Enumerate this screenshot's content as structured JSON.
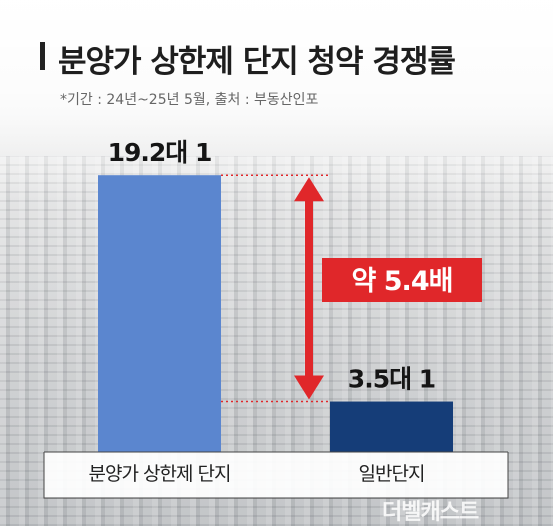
{
  "header": {
    "title": "분양가 상한제 단지 청약 경쟁률",
    "note": "*기간 : 24년~25년 5월, 출처 : 부동산인포"
  },
  "colors": {
    "bar_primary": "#5b86cf",
    "bar_secondary": "#153d78",
    "accent_red": "#e0272a",
    "dotted_red": "#e0272a"
  },
  "annotation": {
    "text": "약 5.4배"
  },
  "watermark": "더벨캐스트",
  "chart_data": {
    "type": "bar",
    "categories": [
      "분양가 상한제 단지",
      "일반단지"
    ],
    "values": [
      19.2,
      3.5
    ],
    "data_labels": [
      "19.2대 1",
      "3.5대 1"
    ],
    "ylim": [
      0,
      24
    ],
    "grid": false
  }
}
